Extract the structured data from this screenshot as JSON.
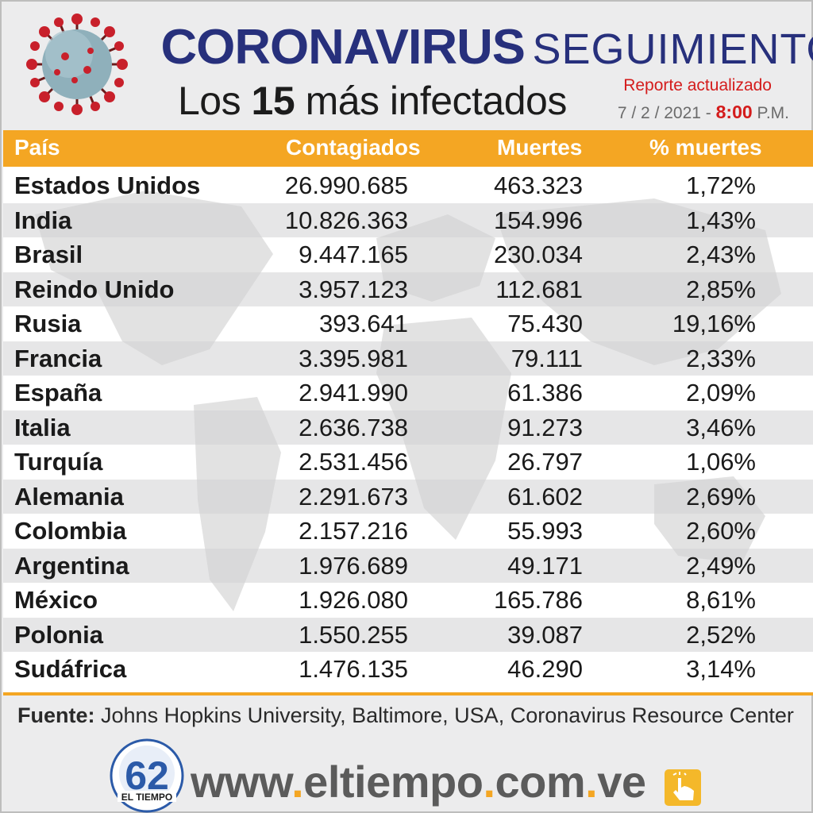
{
  "header": {
    "title_bold": "CORONAVIRUS",
    "title_light": "SEGUIMIENTO",
    "subtitle_prefix": "Los",
    "subtitle_num": "15",
    "subtitle_suffix": "más infectados",
    "report_label": "Reporte actualizado",
    "date": "7 / 2 / 2021 -",
    "time": "8:00",
    "meridiem": "P.M."
  },
  "table": {
    "columns": [
      "País",
      "Contagiados",
      "Muertes",
      "% muertes"
    ],
    "rows": [
      {
        "country": "Estados Unidos",
        "cases": "26.990.685",
        "deaths": "463.323",
        "pct": "1,72%"
      },
      {
        "country": "India",
        "cases": "10.826.363",
        "deaths": "154.996",
        "pct": "1,43%"
      },
      {
        "country": "Brasil",
        "cases": "9.447.165",
        "deaths": "230.034",
        "pct": "2,43%"
      },
      {
        "country": "Reindo Unido",
        "cases": "3.957.123",
        "deaths": "112.681",
        "pct": "2,85%"
      },
      {
        "country": "Rusia",
        "cases": "393.641",
        "deaths": "75.430",
        "pct": "19,16%"
      },
      {
        "country": "Francia",
        "cases": "3.395.981",
        "deaths": "79.111",
        "pct": "2,33%"
      },
      {
        "country": "España",
        "cases": "2.941.990",
        "deaths": "61.386",
        "pct": "2,09%"
      },
      {
        "country": "Italia",
        "cases": "2.636.738",
        "deaths": "91.273",
        "pct": "3,46%"
      },
      {
        "country": "Turquía",
        "cases": "2.531.456",
        "deaths": "26.797",
        "pct": "1,06%"
      },
      {
        "country": "Alemania",
        "cases": "2.291.673",
        "deaths": "61.602",
        "pct": "2,69%"
      },
      {
        "country": "Colombia",
        "cases": "2.157.216",
        "deaths": "55.993",
        "pct": "2,60%"
      },
      {
        "country": "Argentina",
        "cases": "1.976.689",
        "deaths": "49.171",
        "pct": "2,49%"
      },
      {
        "country": "México",
        "cases": "1.926.080",
        "deaths": "165.786",
        "pct": "8,61%"
      },
      {
        "country": "Polonia",
        "cases": "1.550.255",
        "deaths": "39.087",
        "pct": "2,52%"
      },
      {
        "country": "Sudáfrica",
        "cases": "1.476.135",
        "deaths": "46.290",
        "pct": "3,14%"
      }
    ]
  },
  "footer": {
    "source_label": "Fuente:",
    "source_text": "Johns Hopkins University, Baltimore, USA, Coronavirus Resource Center",
    "logo_number": "62",
    "logo_name": "EL TIEMPO",
    "site_www": "www",
    "site_name": "eltiempo",
    "site_com": "com",
    "site_ve": "ve"
  },
  "colors": {
    "accent": "#f4a623",
    "title_blue": "#27307c",
    "red": "#d41c1c"
  },
  "icons": [
    "coronavirus-icon",
    "map-background",
    "eltiempo-logo",
    "hand-pointer-icon"
  ]
}
